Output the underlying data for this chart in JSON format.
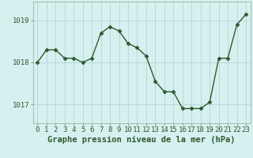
{
  "x": [
    0,
    1,
    2,
    3,
    4,
    5,
    6,
    7,
    8,
    9,
    10,
    11,
    12,
    13,
    14,
    15,
    16,
    17,
    18,
    19,
    20,
    21,
    22,
    23
  ],
  "y": [
    1018.0,
    1018.3,
    1018.3,
    1018.1,
    1018.1,
    1018.0,
    1018.1,
    1018.7,
    1018.85,
    1018.75,
    1018.45,
    1018.35,
    1018.15,
    1017.55,
    1017.3,
    1017.3,
    1016.9,
    1016.9,
    1016.9,
    1017.05,
    1018.1,
    1018.1,
    1018.9,
    1019.15
  ],
  "line_color": "#2d5a2d",
  "marker": "D",
  "marker_size": 2.5,
  "linewidth": 1.0,
  "background_color": "#d6f0f0",
  "grid_color": "#b8d8d8",
  "xlabel": "Graphe pression niveau de la mer (hPa)",
  "xlabel_fontsize": 7.5,
  "xlabel_fontweight": "bold",
  "yticks": [
    1017,
    1018,
    1019
  ],
  "ylim": [
    1016.55,
    1019.45
  ],
  "xlim": [
    -0.5,
    23.5
  ],
  "tick_label_fontsize": 6.5,
  "tick_color": "#2d5a2d",
  "spine_color": "#8aaa8a"
}
